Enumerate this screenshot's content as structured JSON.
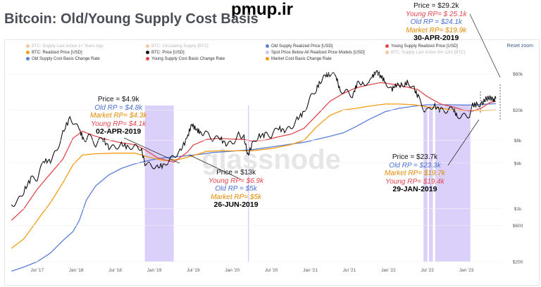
{
  "title": "Bitcoin: Old/Young Supply Cost Basis",
  "watermark_top": "pmup.ir",
  "watermark_chart": "glassnode",
  "reset_zoom": "Reset zoom",
  "legend": [
    {
      "label": "BTC: Supply Last Active 1+ Years Ago",
      "color": "#f5c79a",
      "faded": true
    },
    {
      "label": "BTC: Circulating Supply [BTC]",
      "color": "#f5c79a",
      "faded": true
    },
    {
      "label": "Old Supply Realized Price [USD]",
      "color": "#5b7fd6",
      "faded": false
    },
    {
      "label": "Young Supply Realized Price [USD]",
      "color": "#e0474c",
      "faded": false
    },
    {
      "label": "BTC: Realized Price [USD]",
      "color": "#f39c12",
      "faded": false
    },
    {
      "label": "BTC: Price [USD]",
      "color": "#111111",
      "faded": false
    },
    {
      "label": "Spot Price Below All Realized Price Models [USD]",
      "color": "#cfc4f7",
      "faded": false
    },
    {
      "label": "BTC: Supply Last Active 6m-12m [BTC]",
      "color": "#f5c79a",
      "faded": true
    },
    {
      "label": "Old Supply Cost Basis Change Rate",
      "color": "#5b7fd6",
      "faded": false
    },
    {
      "label": "Young Supply Cost Basis Change Rate",
      "color": "#e0474c",
      "faded": false
    },
    {
      "label": "Market Cost Basis Change Rate",
      "color": "#f39c12",
      "faded": false
    }
  ],
  "annotations": [
    {
      "id": "apr2019",
      "lines": [
        {
          "text": "Price = $4.9k",
          "color": "#111111"
        },
        {
          "text": "Old RP = $4.8k",
          "color": "#4a6fd0"
        },
        {
          "text": "Market RP= $4.3k",
          "color": "#e08a00"
        },
        {
          "text": "Young RP= $4.1k",
          "color": "#e0474c"
        }
      ],
      "date": "02-APR-2019"
    },
    {
      "id": "jun2019",
      "lines": [
        {
          "text": "Price = $13k",
          "color": "#111111"
        },
        {
          "text": "Young RP= $6.9k",
          "color": "#e0474c"
        },
        {
          "text": "Old RP = $5k",
          "color": "#4a6fd0"
        },
        {
          "text": "Market RP= $5k",
          "color": "#e08a00"
        }
      ],
      "date": "26-JUN-2019"
    },
    {
      "id": "jan2019",
      "lines": [
        {
          "text": "Price = $23.7k",
          "color": "#111111"
        },
        {
          "text": "Old RP = $23.3k",
          "color": "#4a6fd0"
        },
        {
          "text": "Market RP= $19.7k",
          "color": "#e08a00"
        },
        {
          "text": "Young RP= $19.4k",
          "color": "#e0474c"
        }
      ],
      "date": "29-JAN-2019"
    },
    {
      "id": "apr2019b",
      "lines": [
        {
          "text": "Price = $29.2k",
          "color": "#111111"
        },
        {
          "text": "Young RP= $ 25.1k",
          "color": "#e0474c"
        },
        {
          "text": "Old RP = $24.1k",
          "color": "#4a6fd0"
        },
        {
          "text": "Market RP= $19.9k",
          "color": "#e08a00"
        }
      ],
      "date": "30-APR-2019"
    }
  ],
  "chart_data": {
    "type": "line",
    "y_scale": "log",
    "ylim": [
      200,
      90000
    ],
    "y_ticks": [
      {
        "v": 60000,
        "label": "$60k"
      },
      {
        "v": 20000,
        "label": "$20k"
      },
      {
        "v": 8000,
        "label": "$8k"
      },
      {
        "v": 4000,
        "label": "$4k"
      },
      {
        "v": 1000,
        "label": "$1k"
      },
      {
        "v": 600,
        "label": "$600"
      },
      {
        "v": 200,
        "label": "$200"
      }
    ],
    "x_ticks": [
      "Jul '17",
      "Jan '18",
      "Jul '18",
      "Jan '19",
      "Jul '19",
      "Jan '20",
      "Jul '20",
      "Jan '21",
      "Jul '21",
      "Jan '22",
      "Jul '22",
      "Jan '23"
    ],
    "x_range": [
      2017.15,
      2023.45
    ],
    "series": [
      {
        "name": "BTC: Price [USD]",
        "color": "#111111",
        "points": [
          [
            2017.17,
            1100
          ],
          [
            2017.25,
            1250
          ],
          [
            2017.33,
            1700
          ],
          [
            2017.42,
            2500
          ],
          [
            2017.5,
            2500
          ],
          [
            2017.58,
            4200
          ],
          [
            2017.67,
            4300
          ],
          [
            2017.75,
            5800
          ],
          [
            2017.83,
            10000
          ],
          [
            2017.92,
            16000
          ],
          [
            2017.96,
            14000
          ],
          [
            2018.04,
            11000
          ],
          [
            2018.1,
            8000
          ],
          [
            2018.17,
            9000
          ],
          [
            2018.25,
            7000
          ],
          [
            2018.33,
            8500
          ],
          [
            2018.42,
            6500
          ],
          [
            2018.5,
            6400
          ],
          [
            2018.58,
            7000
          ],
          [
            2018.67,
            6500
          ],
          [
            2018.75,
            6500
          ],
          [
            2018.83,
            6300
          ],
          [
            2018.88,
            4000
          ],
          [
            2018.96,
            3700
          ],
          [
            2019.04,
            3500
          ],
          [
            2019.13,
            3800
          ],
          [
            2019.25,
            4900
          ],
          [
            2019.33,
            5700
          ],
          [
            2019.42,
            8500
          ],
          [
            2019.48,
            13000
          ],
          [
            2019.54,
            11000
          ],
          [
            2019.6,
            10000
          ],
          [
            2019.67,
            9800
          ],
          [
            2019.75,
            8300
          ],
          [
            2019.83,
            8600
          ],
          [
            2019.92,
            7200
          ],
          [
            2020.0,
            7200
          ],
          [
            2020.08,
            9500
          ],
          [
            2020.15,
            8700
          ],
          [
            2020.2,
            5000
          ],
          [
            2020.25,
            6800
          ],
          [
            2020.33,
            9000
          ],
          [
            2020.42,
            9500
          ],
          [
            2020.5,
            9200
          ],
          [
            2020.58,
            11500
          ],
          [
            2020.67,
            10800
          ],
          [
            2020.75,
            11500
          ],
          [
            2020.83,
            15000
          ],
          [
            2020.92,
            19000
          ],
          [
            2021.0,
            29000
          ],
          [
            2021.08,
            38000
          ],
          [
            2021.13,
            48000
          ],
          [
            2021.2,
            57000
          ],
          [
            2021.25,
            59000
          ],
          [
            2021.33,
            56000
          ],
          [
            2021.38,
            36000
          ],
          [
            2021.46,
            35000
          ],
          [
            2021.54,
            31000
          ],
          [
            2021.6,
            44000
          ],
          [
            2021.67,
            47000
          ],
          [
            2021.75,
            43000
          ],
          [
            2021.79,
            55000
          ],
          [
            2021.85,
            64000
          ],
          [
            2021.9,
            57000
          ],
          [
            2021.96,
            47000
          ],
          [
            2022.04,
            37000
          ],
          [
            2022.1,
            43000
          ],
          [
            2022.2,
            42000
          ],
          [
            2022.25,
            47000
          ],
          [
            2022.33,
            38000
          ],
          [
            2022.38,
            30000
          ],
          [
            2022.46,
            20000
          ],
          [
            2022.5,
            19500
          ],
          [
            2022.58,
            23000
          ],
          [
            2022.67,
            20000
          ],
          [
            2022.75,
            19500
          ],
          [
            2022.83,
            21000
          ],
          [
            2022.88,
            16500
          ],
          [
            2022.96,
            16800
          ],
          [
            2023.04,
            17000
          ],
          [
            2023.08,
            23000
          ],
          [
            2023.13,
            23700
          ],
          [
            2023.2,
            24000
          ],
          [
            2023.25,
            28000
          ],
          [
            2023.3,
            29200
          ],
          [
            2023.35,
            27500
          ],
          [
            2023.38,
            28500
          ]
        ]
      },
      {
        "name": "Young Supply Realized Price [USD]",
        "color": "#e0474c",
        "points": [
          [
            2017.17,
            700
          ],
          [
            2017.33,
            1000
          ],
          [
            2017.5,
            1800
          ],
          [
            2017.67,
            2900
          ],
          [
            2017.83,
            4500
          ],
          [
            2017.96,
            8500
          ],
          [
            2018.08,
            10500
          ],
          [
            2018.25,
            9000
          ],
          [
            2018.42,
            8000
          ],
          [
            2018.58,
            7400
          ],
          [
            2018.75,
            7000
          ],
          [
            2018.88,
            6000
          ],
          [
            2019.04,
            4700
          ],
          [
            2019.25,
            4100
          ],
          [
            2019.42,
            5500
          ],
          [
            2019.5,
            6900
          ],
          [
            2019.67,
            8200
          ],
          [
            2019.83,
            8500
          ],
          [
            2019.96,
            8300
          ],
          [
            2020.13,
            8200
          ],
          [
            2020.25,
            7800
          ],
          [
            2020.42,
            8000
          ],
          [
            2020.58,
            8800
          ],
          [
            2020.75,
            9600
          ],
          [
            2020.92,
            11500
          ],
          [
            2021.08,
            17000
          ],
          [
            2021.25,
            26000
          ],
          [
            2021.42,
            33000
          ],
          [
            2021.58,
            39000
          ],
          [
            2021.75,
            43000
          ],
          [
            2021.9,
            46000
          ],
          [
            2022.04,
            44000
          ],
          [
            2022.25,
            40000
          ],
          [
            2022.38,
            37000
          ],
          [
            2022.5,
            30000
          ],
          [
            2022.67,
            24000
          ],
          [
            2022.83,
            22000
          ],
          [
            2022.96,
            20000
          ],
          [
            2023.08,
            19400
          ],
          [
            2023.2,
            21500
          ],
          [
            2023.3,
            25100
          ],
          [
            2023.38,
            26000
          ]
        ]
      },
      {
        "name": "BTC: Realized Price [USD]",
        "color": "#f39c12",
        "points": [
          [
            2017.17,
            300
          ],
          [
            2017.33,
            400
          ],
          [
            2017.5,
            700
          ],
          [
            2017.67,
            1200
          ],
          [
            2017.83,
            2200
          ],
          [
            2017.96,
            3800
          ],
          [
            2018.08,
            5100
          ],
          [
            2018.25,
            5300
          ],
          [
            2018.5,
            5400
          ],
          [
            2018.75,
            5400
          ],
          [
            2018.96,
            4700
          ],
          [
            2019.13,
            4300
          ],
          [
            2019.33,
            4500
          ],
          [
            2019.5,
            5000
          ],
          [
            2019.67,
            5700
          ],
          [
            2019.83,
            5800
          ],
          [
            2020.0,
            5800
          ],
          [
            2020.25,
            5800
          ],
          [
            2020.5,
            6200
          ],
          [
            2020.75,
            7000
          ],
          [
            2020.92,
            8000
          ],
          [
            2021.08,
            12000
          ],
          [
            2021.25,
            17000
          ],
          [
            2021.42,
            20000
          ],
          [
            2021.58,
            21000
          ],
          [
            2021.75,
            22500
          ],
          [
            2021.96,
            24000
          ],
          [
            2022.13,
            24000
          ],
          [
            2022.33,
            23500
          ],
          [
            2022.5,
            22000
          ],
          [
            2022.67,
            21000
          ],
          [
            2022.83,
            20000
          ],
          [
            2023.08,
            19700
          ],
          [
            2023.3,
            19900
          ],
          [
            2023.38,
            20000
          ]
        ]
      },
      {
        "name": "Old Supply Realized Price [USD]",
        "color": "#5b7fd6",
        "points": [
          [
            2017.17,
            150
          ],
          [
            2017.33,
            170
          ],
          [
            2017.5,
            200
          ],
          [
            2017.67,
            260
          ],
          [
            2017.83,
            380
          ],
          [
            2017.96,
            500
          ],
          [
            2018.04,
            700
          ],
          [
            2018.13,
            1300
          ],
          [
            2018.25,
            2000
          ],
          [
            2018.42,
            2800
          ],
          [
            2018.58,
            3400
          ],
          [
            2018.75,
            3900
          ],
          [
            2018.96,
            4400
          ],
          [
            2019.13,
            4700
          ],
          [
            2019.25,
            4800
          ],
          [
            2019.42,
            5000
          ],
          [
            2019.58,
            5200
          ],
          [
            2019.75,
            5500
          ],
          [
            2019.96,
            5700
          ],
          [
            2020.25,
            6000
          ],
          [
            2020.5,
            6500
          ],
          [
            2020.75,
            7100
          ],
          [
            2020.92,
            7500
          ],
          [
            2021.08,
            8200
          ],
          [
            2021.25,
            9000
          ],
          [
            2021.42,
            10000
          ],
          [
            2021.58,
            12000
          ],
          [
            2021.75,
            15000
          ],
          [
            2021.96,
            19000
          ],
          [
            2022.13,
            21000
          ],
          [
            2022.33,
            22500
          ],
          [
            2022.5,
            23500
          ],
          [
            2022.75,
            23500
          ],
          [
            2022.96,
            23300
          ],
          [
            2023.08,
            23300
          ],
          [
            2023.3,
            24100
          ],
          [
            2023.38,
            24200
          ]
        ]
      }
    ],
    "capitulation_bands": [
      [
        2018.88,
        2019.25
      ],
      [
        2020.2,
        2020.215
      ],
      [
        2022.45,
        2022.5
      ],
      [
        2022.52,
        2022.57
      ],
      [
        2022.6,
        2023.05
      ]
    ]
  }
}
